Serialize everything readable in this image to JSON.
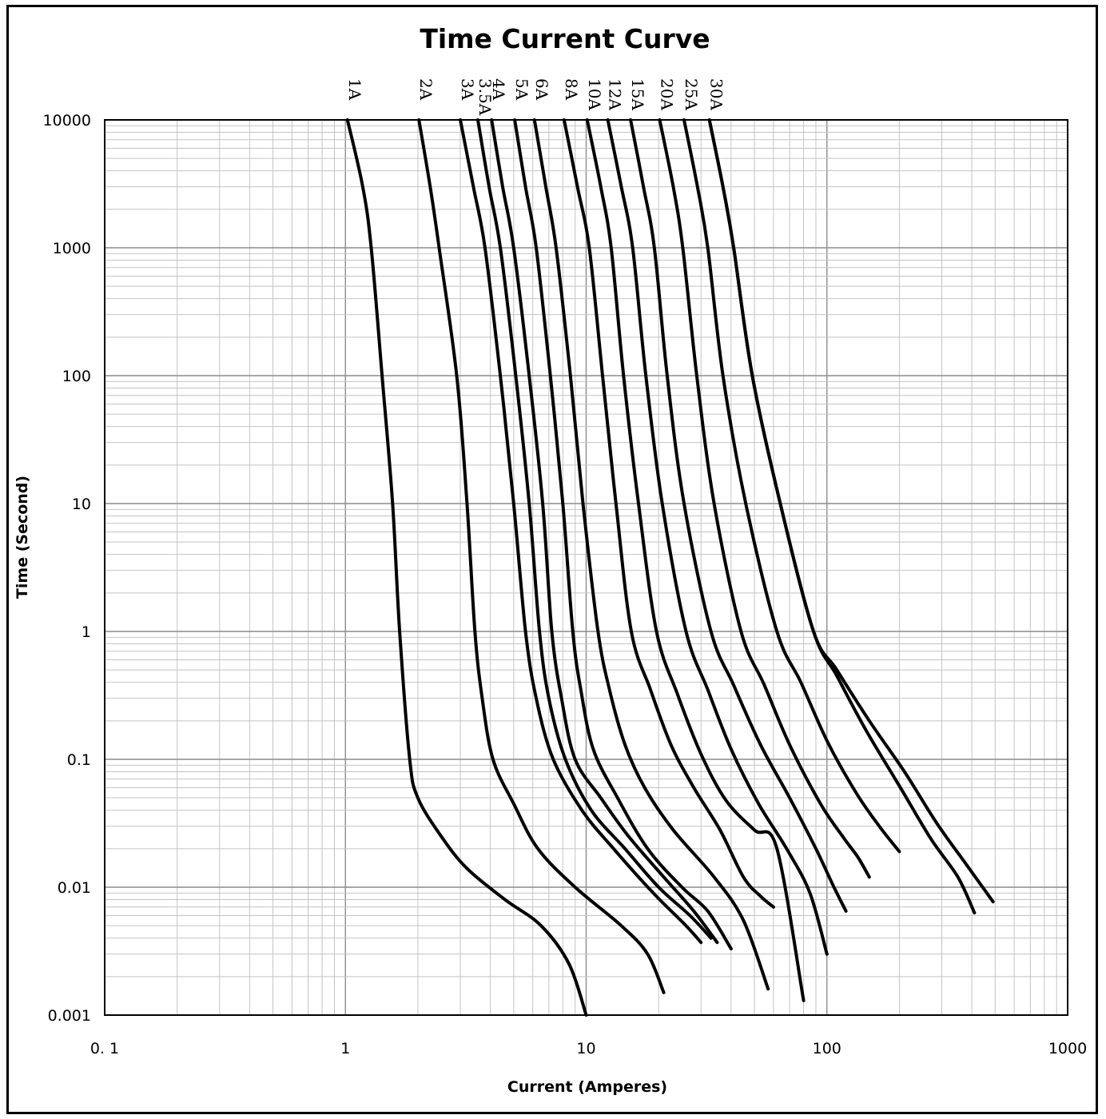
{
  "chart_data": {
    "type": "line",
    "title": "Time Current Curve",
    "xlabel": "Current  (Amperes)",
    "ylabel": "Time (Second)",
    "x_scale": "log",
    "y_scale": "log",
    "xlim": [
      0.1,
      1000
    ],
    "ylim": [
      0.001,
      10000
    ],
    "grid": true,
    "x_ticks": [
      "0. 1",
      "1",
      "10",
      "100",
      "1000"
    ],
    "y_ticks": [
      "10000",
      "1000",
      "100",
      "10",
      "1",
      "0.1",
      "0.01",
      "0.001"
    ],
    "series": [
      {
        "name": "1A",
        "points": [
          [
            1.02,
            10000
          ],
          [
            1.18,
            3000
          ],
          [
            1.28,
            1000
          ],
          [
            1.42,
            100
          ],
          [
            1.57,
            10
          ],
          [
            1.68,
            1
          ],
          [
            1.85,
            0.1
          ],
          [
            2.0,
            0.05
          ],
          [
            2.5,
            0.025
          ],
          [
            3.2,
            0.014
          ],
          [
            4.6,
            0.008
          ],
          [
            6.5,
            0.005
          ],
          [
            8.5,
            0.0025
          ],
          [
            10,
            0.001
          ]
        ]
      },
      {
        "name": "2A",
        "points": [
          [
            2.02,
            10000
          ],
          [
            2.25,
            3000
          ],
          [
            2.45,
            1000
          ],
          [
            2.9,
            100
          ],
          [
            3.2,
            10
          ],
          [
            3.45,
            1
          ],
          [
            3.7,
            0.3
          ],
          [
            4.1,
            0.1
          ],
          [
            5.0,
            0.045
          ],
          [
            6.3,
            0.02
          ],
          [
            9.0,
            0.01
          ],
          [
            14,
            0.005
          ],
          [
            18,
            0.003
          ],
          [
            21,
            0.0015
          ]
        ]
      },
      {
        "name": "3A",
        "points": [
          [
            3.0,
            10000
          ],
          [
            3.4,
            3000
          ],
          [
            3.8,
            1000
          ],
          [
            4.4,
            100
          ],
          [
            5.0,
            10
          ],
          [
            5.6,
            1
          ],
          [
            6.2,
            0.3
          ],
          [
            7.3,
            0.1
          ],
          [
            9.6,
            0.04
          ],
          [
            13,
            0.02
          ],
          [
            19,
            0.009
          ],
          [
            26,
            0.005
          ],
          [
            30,
            0.0037
          ]
        ]
      },
      {
        "name": "3.5A",
        "points": [
          [
            3.55,
            10000
          ],
          [
            3.95,
            3000
          ],
          [
            4.4,
            1000
          ],
          [
            5.1,
            100
          ],
          [
            5.8,
            10
          ],
          [
            6.4,
            1
          ],
          [
            7.0,
            0.3
          ],
          [
            8.2,
            0.1
          ],
          [
            10.5,
            0.04
          ],
          [
            14.5,
            0.02
          ],
          [
            20,
            0.01
          ],
          [
            27,
            0.006
          ],
          [
            33,
            0.004
          ]
        ]
      },
      {
        "name": "4A",
        "points": [
          [
            4.05,
            10000
          ],
          [
            4.5,
            3000
          ],
          [
            5.0,
            1000
          ],
          [
            5.8,
            100
          ],
          [
            6.6,
            10
          ],
          [
            7.2,
            1
          ],
          [
            7.9,
            0.3
          ],
          [
            9.0,
            0.1
          ],
          [
            11.5,
            0.05
          ],
          [
            15,
            0.025
          ],
          [
            21,
            0.012
          ],
          [
            28,
            0.0065
          ],
          [
            35,
            0.0037
          ]
        ]
      },
      {
        "name": "5A",
        "points": [
          [
            5.05,
            10000
          ],
          [
            5.6,
            3000
          ],
          [
            6.2,
            1000
          ],
          [
            7.1,
            100
          ],
          [
            8.0,
            10
          ],
          [
            8.8,
            1
          ],
          [
            9.5,
            0.35
          ],
          [
            10.7,
            0.12
          ],
          [
            13.5,
            0.05
          ],
          [
            18,
            0.02
          ],
          [
            25,
            0.01
          ],
          [
            32,
            0.0065
          ],
          [
            40,
            0.0033
          ]
        ]
      },
      {
        "name": "6A",
        "points": [
          [
            6.1,
            10000
          ],
          [
            6.8,
            3000
          ],
          [
            7.5,
            1000
          ],
          [
            8.6,
            100
          ],
          [
            9.7,
            10
          ],
          [
            11.2,
            1
          ],
          [
            12.5,
            0.35
          ],
          [
            14.5,
            0.13
          ],
          [
            17.5,
            0.06
          ],
          [
            23,
            0.028
          ],
          [
            34,
            0.012
          ],
          [
            45,
            0.0055
          ],
          [
            57,
            0.0016
          ]
        ]
      },
      {
        "name": "8A",
        "points": [
          [
            8.1,
            10000
          ],
          [
            9.2,
            3000
          ],
          [
            10.3,
            1000
          ],
          [
            11.7,
            100
          ],
          [
            13.3,
            10
          ],
          [
            15.4,
            1
          ],
          [
            18.5,
            0.35
          ],
          [
            22.5,
            0.13
          ],
          [
            28,
            0.06
          ],
          [
            36,
            0.028
          ],
          [
            45,
            0.012
          ],
          [
            53,
            0.0085
          ],
          [
            60,
            0.007
          ]
        ]
      },
      {
        "name": "10A",
        "points": [
          [
            10.1,
            10000
          ],
          [
            11.5,
            3000
          ],
          [
            12.7,
            1000
          ],
          [
            14.3,
            100
          ],
          [
            16.5,
            10
          ],
          [
            19.6,
            1
          ],
          [
            24,
            0.32
          ],
          [
            30,
            0.11
          ],
          [
            38,
            0.048
          ],
          [
            50,
            0.028
          ],
          [
            62,
            0.02
          ],
          [
            80,
            0.0013
          ]
        ]
      },
      {
        "name": "12A",
        "points": [
          [
            12.3,
            10000
          ],
          [
            14,
            3000
          ],
          [
            15.6,
            1000
          ],
          [
            17.7,
            100
          ],
          [
            20.7,
            10
          ],
          [
            26,
            1
          ],
          [
            32,
            0.35
          ],
          [
            40,
            0.12
          ],
          [
            52,
            0.045
          ],
          [
            68,
            0.02
          ],
          [
            85,
            0.009
          ],
          [
            100,
            0.003
          ]
        ]
      },
      {
        "name": "15A",
        "points": [
          [
            15.3,
            10000
          ],
          [
            17.3,
            3000
          ],
          [
            19.2,
            1000
          ],
          [
            21.7,
            100
          ],
          [
            25.5,
            10
          ],
          [
            33,
            1
          ],
          [
            41,
            0.38
          ],
          [
            53,
            0.13
          ],
          [
            70,
            0.05
          ],
          [
            90,
            0.02
          ],
          [
            107,
            0.01
          ],
          [
            120,
            0.0065
          ]
        ]
      },
      {
        "name": "20A",
        "points": [
          [
            20.2,
            10000
          ],
          [
            23,
            3000
          ],
          [
            25.2,
            1000
          ],
          [
            28.8,
            100
          ],
          [
            34,
            10
          ],
          [
            44,
            1
          ],
          [
            55,
            0.38
          ],
          [
            70,
            0.13
          ],
          [
            94,
            0.045
          ],
          [
            118,
            0.024
          ],
          [
            135,
            0.017
          ],
          [
            150,
            0.012
          ]
        ]
      },
      {
        "name": "25A",
        "points": [
          [
            25.5,
            10000
          ],
          [
            29,
            3000
          ],
          [
            32,
            1000
          ],
          [
            37,
            100
          ],
          [
            46,
            10
          ],
          [
            62,
            1
          ],
          [
            78,
            0.4
          ],
          [
            100,
            0.14
          ],
          [
            132,
            0.055
          ],
          [
            165,
            0.03
          ],
          [
            200,
            0.019
          ]
        ]
      },
      {
        "name": "30A",
        "points": [
          [
            32.5,
            10000
          ],
          [
            37,
            3000
          ],
          [
            41,
            1000
          ],
          [
            49,
            100
          ],
          [
            64,
            10
          ],
          [
            88,
            1
          ],
          [
            110,
            0.45
          ],
          [
            145,
            0.17
          ],
          [
            200,
            0.062
          ],
          [
            270,
            0.024
          ],
          [
            350,
            0.012
          ],
          [
            410,
            0.0063
          ]
        ]
      },
      {
        "name": "",
        "points": [
          [
            32.5,
            10000
          ],
          [
            37,
            3000
          ],
          [
            41,
            1000
          ],
          [
            49,
            100
          ],
          [
            64,
            10
          ],
          [
            88,
            1
          ],
          [
            110,
            0.5
          ],
          [
            150,
            0.2
          ],
          [
            210,
            0.08
          ],
          [
            285,
            0.032
          ],
          [
            380,
            0.015
          ],
          [
            490,
            0.0077
          ]
        ]
      }
    ]
  }
}
